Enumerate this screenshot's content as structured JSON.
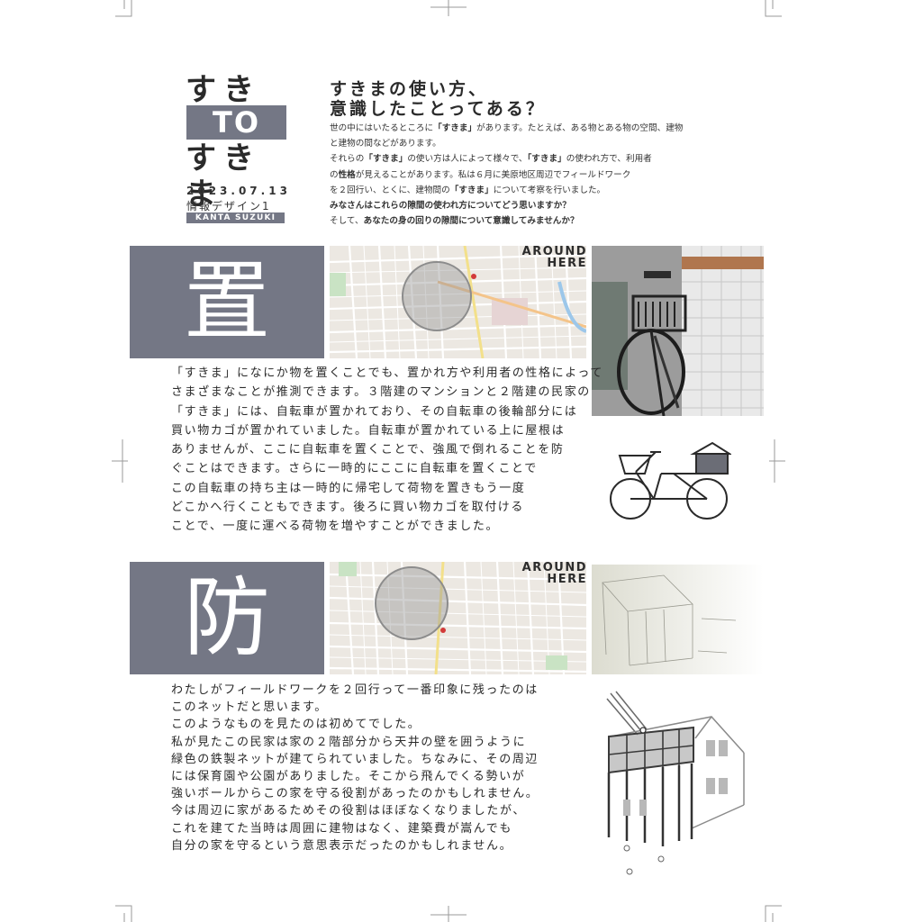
{
  "logo": {
    "line1": "すきま",
    "line2": "TO",
    "line3": "すきま"
  },
  "meta": {
    "date": "2023.07.13",
    "course": "情報デザイン1",
    "author": "KANTA SUZUKI"
  },
  "intro": {
    "headline_1": "すきまの使い方、",
    "headline_2": "意識したことってある？",
    "lines": [
      [
        "世の中にはいたるところに",
        "「すきま」",
        "があります。たとえば、ある物とある物の空間、建物"
      ],
      [
        "と建物の間などがあります。",
        "",
        ""
      ],
      [
        "それらの",
        "「すきま」",
        "の使い方は人によって様々で、"
      ],
      [
        "「すきま」",
        "の使われ方で、利用者",
        ""
      ],
      [
        "の",
        "性格",
        "が見えることがあります。私は６月に美原地区周辺でフィールドワーク"
      ],
      [
        "を２回行い、とくに、建物間の",
        "「すきま」",
        "について考察を行いました。"
      ],
      [
        "",
        "みなさんはこれらの隙間の使われ方についてどう思いますか？",
        ""
      ],
      [
        "そして、",
        "あなたの身の回りの隙間について意識してみませんか？",
        ""
      ]
    ]
  },
  "sections": [
    {
      "kanji": "置",
      "around_1": "AROUND",
      "around_2": "HERE",
      "paragraph": [
        "「すきま」になにか物を置くことでも、置かれ方や利用者の性格によって",
        "さまざまなことが推測できます。３階建のマンションと２階建の民家の",
        "「すきま」には、自転車が置かれており、その自転車の後輪部分には",
        "買い物カゴが置かれていました。自転車が置かれている上に屋根は",
        "ありませんが、ここに自転車を置くことで、強風で倒れることを防",
        "ぐことはできます。さらに一時的にここに自転車を置くことで",
        "この自転車の持ち主は一時的に帰宅して荷物を置きもう一度",
        "どこかへ行くこともできます。後ろに買い物カゴを取付ける",
        "ことで、一度に運べる荷物を増やすことができました。"
      ]
    },
    {
      "kanji": "防",
      "around_1": "AROUND",
      "around_2": "HERE",
      "paragraph": [
        "わたしがフィールドワークを２回行って一番印象に残ったのは",
        "このネットだと思います。",
        "このようなものを見たのは初めてでした。",
        "私が見たこの民家は家の２階部分から天井の壁を囲うように",
        "緑色の鉄製ネットが建てられていました。ちなみに、その周辺",
        "には保育園や公園がありました。そこから飛んでくる勢いが",
        "強いボールからこの家を守る役割があったのかもしれません。",
        "今は周辺に家があるためその役割はほぼなくなりましたが、",
        "これを建てた当時は周囲に建物はなく、建築費が嵩んでも",
        "自分の家を守るという意思表示だったのかもしれません。"
      ]
    }
  ],
  "colors": {
    "accent": "#747785",
    "map_bg": "#ece8e2",
    "text": "#2a2a2a"
  }
}
